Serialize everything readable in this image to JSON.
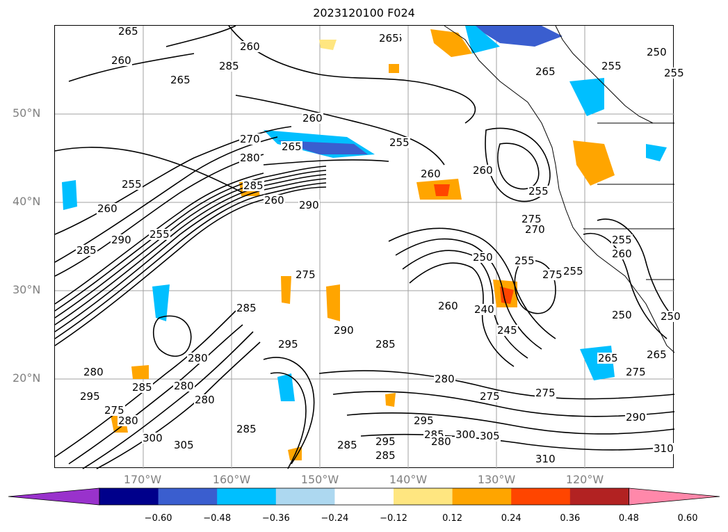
{
  "title": "2023120100 F024",
  "map": {
    "lat_labels": [
      "50°N",
      "40°N",
      "30°N",
      "20°N"
    ],
    "lon_labels": [
      "170°W",
      "160°W",
      "150°W",
      "140°W",
      "130°W",
      "120°W"
    ],
    "contour_labels": [
      "265",
      "260",
      "265",
      "265",
      "285",
      "265",
      "260",
      "250",
      "265",
      "255",
      "260",
      "255",
      "270",
      "265",
      "280",
      "285",
      "255",
      "260",
      "260",
      "260",
      "255",
      "255",
      "275",
      "270",
      "290",
      "285",
      "290",
      "255",
      "255",
      "275",
      "260",
      "275",
      "250",
      "255",
      "255",
      "250",
      "260",
      "240",
      "260",
      "245",
      "290",
      "285",
      "295",
      "285",
      "280",
      "280",
      "295",
      "285",
      "280",
      "275",
      "275",
      "265",
      "275",
      "265",
      "250",
      "290",
      "310",
      "310",
      "305",
      "300",
      "285",
      "295",
      "280",
      "285",
      "295",
      "285",
      "305",
      "300",
      "280",
      "280",
      "275",
      "280",
      "285"
    ]
  },
  "colorbar": {
    "ticks": [
      "−0.60",
      "−0.48",
      "−0.36",
      "−0.24",
      "−0.12",
      "0.12",
      "0.24",
      "0.36",
      "0.48",
      "0.60"
    ],
    "colors": [
      "#9932cc",
      "#00008b",
      "#3a5ecf",
      "#00bfff",
      "#add8f0",
      "#ffffff",
      "#ffe680",
      "#ffa500",
      "#ff4500",
      "#b22222",
      "#ff88aa"
    ]
  }
}
